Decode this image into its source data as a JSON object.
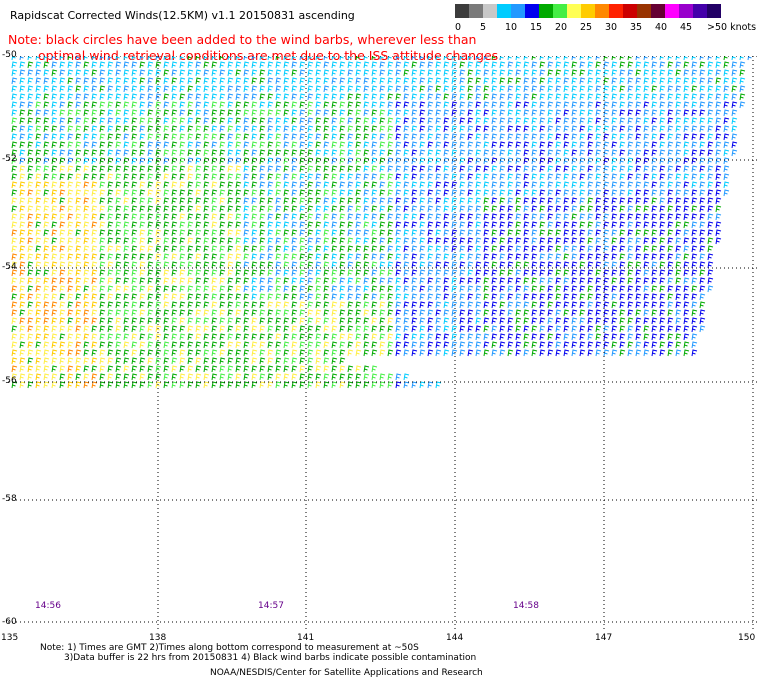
{
  "header": {
    "title": "Rapidscat Corrected Winds(12.5KM) v1.1 20150831 ascending",
    "note_line1": "Note: black circles have been added to the wind barbs, wherever less than",
    "note_line2": "optimal wind retrieval conditions are met due to the ISS attitude changes."
  },
  "color_scale": {
    "unit_label": ">50 knots",
    "ticks": [
      "0",
      "5",
      "10",
      "15",
      "20",
      "25",
      "30",
      "35",
      "40",
      "45"
    ],
    "colors": [
      "#3c3c3c",
      "#7a7a7a",
      "#c8c8c8",
      "#00ccff",
      "#2299ff",
      "#0000ee",
      "#00aa00",
      "#44ee44",
      "#ffff55",
      "#ffcc00",
      "#ff8800",
      "#ff2200",
      "#cc0000",
      "#993300",
      "#660033",
      "#ff00ff",
      "#9900cc",
      "#4400aa",
      "#220066"
    ]
  },
  "map": {
    "latitude_labels": [
      "-50",
      "-52",
      "-54",
      "-56",
      "-58",
      "-60"
    ],
    "longitude_labels": [
      "135",
      "138",
      "141",
      "144",
      "147",
      "150"
    ],
    "time_labels": [
      "14:56",
      "14:57",
      "14:58"
    ]
  },
  "footer": {
    "line1": "Note: 1) Times are GMT 2)Times along bottom correspond to measurement at ~50S",
    "line2": "3)Data buffer is 22 hrs from 20150831 4) Black wind barbs indicate possible contamination",
    "line3": "NOAA/NESDIS/Center for Satellite Applications and Research"
  }
}
